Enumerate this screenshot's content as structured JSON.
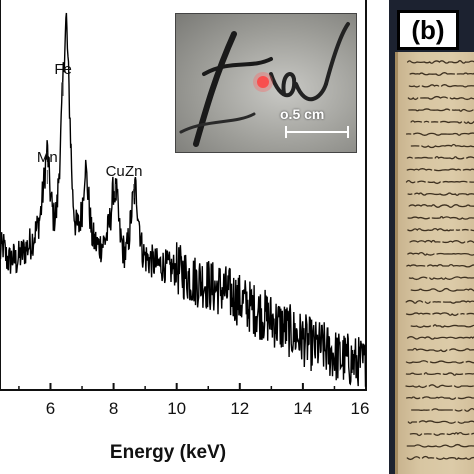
{
  "chart_data": {
    "type": "line",
    "xlabel": "Energy (keV)",
    "ylabel": "",
    "xlim": [
      4.4,
      16
    ],
    "ylim": [
      0,
      1.0
    ],
    "x_ticks": [
      "6",
      "8",
      "10",
      "12",
      "14",
      "16"
    ],
    "x_tick_values": [
      6,
      8,
      10,
      12,
      14,
      16
    ],
    "grid": false,
    "series": [
      {
        "x": [
          4.4,
          4.5,
          4.6,
          4.7,
          4.8,
          4.9,
          5.0,
          5.1,
          5.2,
          5.3,
          5.4,
          5.5,
          5.6,
          5.7,
          5.8,
          5.9,
          6.0,
          6.1,
          6.2,
          6.3,
          6.4,
          6.5,
          6.6,
          6.7,
          6.8,
          6.9,
          7.0,
          7.1,
          7.2,
          7.3,
          7.4,
          7.5,
          7.6,
          7.7,
          7.8,
          7.9,
          8.0,
          8.1,
          8.2,
          8.3,
          8.4,
          8.5,
          8.6,
          8.7,
          8.8,
          8.9,
          9.0,
          9.2,
          9.4,
          9.6,
          9.8,
          10.0,
          10.2,
          10.4,
          10.6,
          10.8,
          11.0,
          11.2,
          11.4,
          11.6,
          11.8,
          12.0,
          12.2,
          12.4,
          12.6,
          12.8,
          13.0,
          13.2,
          13.4,
          13.6,
          13.8,
          14.0,
          14.2,
          14.4,
          14.6,
          14.8,
          15.0,
          15.2,
          15.4,
          15.6,
          15.8,
          16.0
        ],
        "y": [
          0.35,
          0.37,
          0.34,
          0.33,
          0.34,
          0.33,
          0.34,
          0.35,
          0.36,
          0.37,
          0.38,
          0.4,
          0.42,
          0.46,
          0.54,
          0.62,
          0.5,
          0.44,
          0.46,
          0.6,
          0.8,
          0.96,
          0.74,
          0.5,
          0.42,
          0.42,
          0.46,
          0.58,
          0.5,
          0.4,
          0.38,
          0.37,
          0.37,
          0.38,
          0.4,
          0.44,
          0.52,
          0.5,
          0.4,
          0.36,
          0.35,
          0.4,
          0.48,
          0.52,
          0.44,
          0.36,
          0.34,
          0.33,
          0.32,
          0.32,
          0.31,
          0.31,
          0.3,
          0.29,
          0.28,
          0.28,
          0.27,
          0.26,
          0.26,
          0.25,
          0.24,
          0.23,
          0.22,
          0.21,
          0.2,
          0.19,
          0.18,
          0.17,
          0.16,
          0.15,
          0.14,
          0.13,
          0.12,
          0.11,
          0.11,
          0.1,
          0.09,
          0.08,
          0.08,
          0.07,
          0.07,
          0.06
        ]
      }
    ],
    "annotations": [
      {
        "text": "Mn",
        "x": 5.9
      },
      {
        "text": "Fe",
        "x": 6.4
      },
      {
        "text": "Cu",
        "x": 8.05
      },
      {
        "text": "Zn",
        "x": 8.64
      }
    ]
  },
  "inset": {
    "scale_bar_label": "o.5 cm"
  },
  "panel_b": {
    "label": "(b)"
  }
}
